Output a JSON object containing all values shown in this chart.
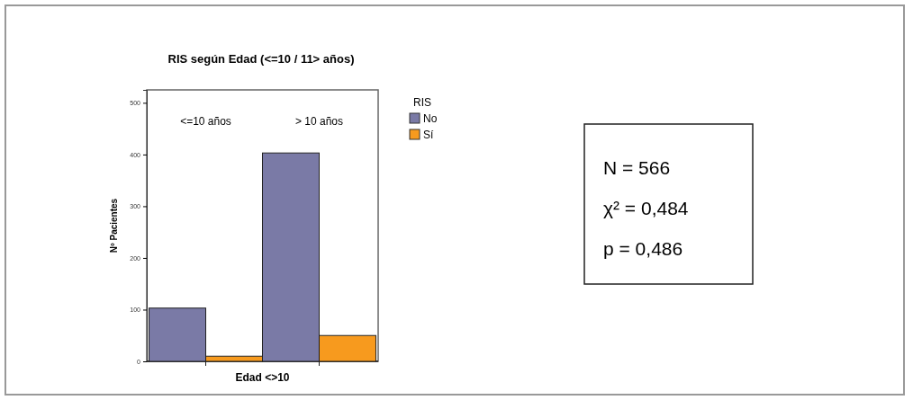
{
  "chart_data": {
    "type": "bar",
    "title": "RIS según Edad (<=10 / 11> años)",
    "xlabel": "Edad <>10",
    "ylabel": "Nº Pacientes",
    "legend_title": "RIS",
    "categories": [
      "<=10 años",
      "> 10 años"
    ],
    "series": [
      {
        "name": "No",
        "color": "#7a7aa6",
        "values": [
          103,
          403
        ]
      },
      {
        "name": "Sí",
        "color": "#f79a1e",
        "values": [
          10,
          50
        ]
      }
    ],
    "ylim": [
      0,
      525
    ],
    "yticks": [
      0,
      100,
      200,
      300,
      400,
      500
    ],
    "grid": false,
    "legend": "right",
    "annotations": [
      "N = 566",
      "χ² = 0,484",
      "p = 0,486"
    ]
  }
}
